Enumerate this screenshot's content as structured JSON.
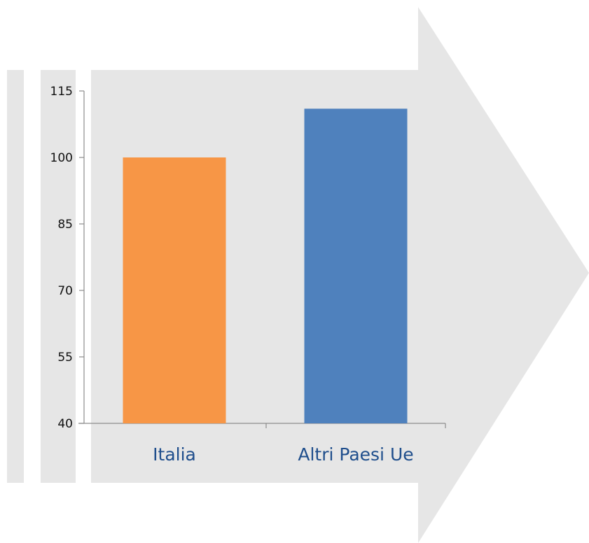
{
  "chart_data": {
    "type": "bar",
    "categories": [
      "Italia",
      "Altri Paesi Ue"
    ],
    "values": [
      100,
      111
    ],
    "yticks": [
      "40",
      "55",
      "70",
      "85",
      "100",
      "115"
    ],
    "ylim": [
      40,
      115
    ],
    "grid": false,
    "legend": "none",
    "bar_colors": [
      "#F79646",
      "#4F81BD"
    ],
    "label_color": "#1F4E8C",
    "background_arrow_color": "#E6E6E6"
  }
}
